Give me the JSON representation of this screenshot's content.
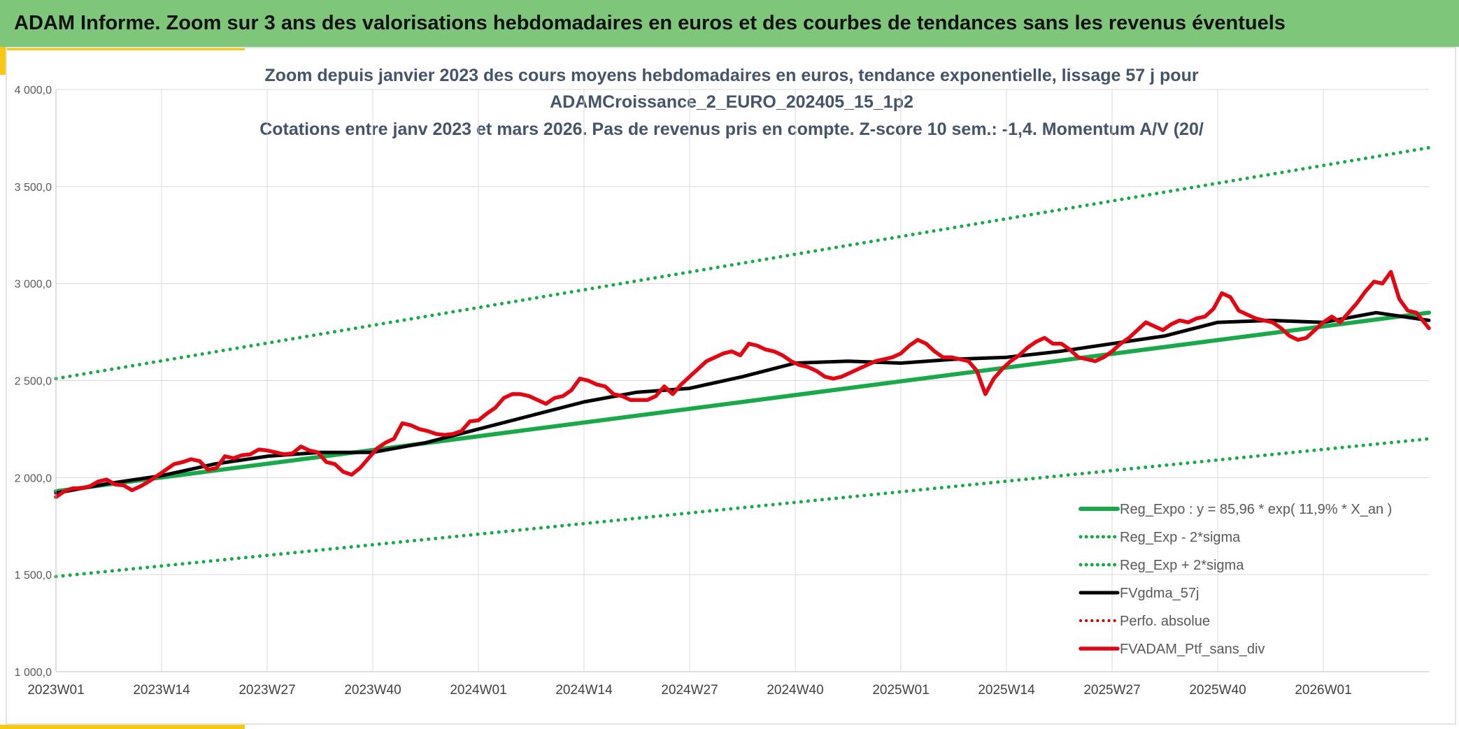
{
  "header": {
    "title": "ADAM Informe. Zoom sur 3 ans des valorisations hebdomadaires en euros et des courbes de tendances sans les revenus éventuels"
  },
  "colors": {
    "banner": "#7ec77a",
    "accent": "#f6c80f",
    "reg_expo": "#1aa94a",
    "sigma_bands": "#1aa94a",
    "fvgdma": "#000000",
    "ptf": "#e30613",
    "perfo": "#c00000"
  },
  "chart_data": {
    "type": "line",
    "title_lines": [
      "Zoom depuis janvier 2023 des cours moyens hebdomadaires en euros, tendance exponentielle, lissage 57 j pour",
      "ADAMCroissance_2_EURO_202405_15_1p2",
      "Cotations entre janv 2023 et mars 2026. Pas de revenus pris en compte. Z-score 10 sem.: -1,4. Momentum A/V (20/"
    ],
    "ylim": [
      1000,
      4000
    ],
    "yticks": [
      1000,
      1500,
      2000,
      2500,
      3000,
      3500,
      4000
    ],
    "ytick_labels": [
      "1 000,0",
      "1 500,0",
      "2 000,0",
      "2 500,0",
      "3 000,0",
      "3 500,0",
      "4 000,0"
    ],
    "xrange": [
      2023.0,
      2026.25
    ],
    "xticks": [
      2023.0,
      2023.25,
      2023.5,
      2023.75,
      2024.0,
      2024.25,
      2024.5,
      2024.75,
      2025.0,
      2025.25,
      2025.5,
      2025.75,
      2026.0
    ],
    "xtick_labels": [
      "2023W01",
      "2023W14",
      "2023W27",
      "2023W40",
      "2024W01",
      "2024W14",
      "2024W27",
      "2024W40",
      "2025W01",
      "2025W14",
      "2025W27",
      "2025W40",
      "2026W01"
    ],
    "grid": true,
    "legend_position": "bottom-right",
    "series": [
      {
        "name": "Reg_Expo : y = 85,96 * exp( 11,9% *  X_an )",
        "style": "solid-thick",
        "x": [
          2023.0,
          2026.25
        ],
        "y": [
          1930,
          2850
        ]
      },
      {
        "name": "Reg_Exp - 2*sigma",
        "style": "dotted",
        "x": [
          2023.0,
          2026.25
        ],
        "y": [
          1490,
          2200
        ]
      },
      {
        "name": "Reg_Exp + 2*sigma",
        "style": "dotted",
        "x": [
          2023.0,
          2026.25
        ],
        "y": [
          2510,
          3700
        ]
      },
      {
        "name": "FVgdma_57j",
        "style": "solid",
        "x": [
          2023.0,
          2023.125,
          2023.25,
          2023.375,
          2023.5,
          2023.625,
          2023.75,
          2023.875,
          2024.0,
          2024.125,
          2024.25,
          2024.375,
          2024.5,
          2024.625,
          2024.75,
          2024.875,
          2025.0,
          2025.125,
          2025.25,
          2025.375,
          2025.5,
          2025.625,
          2025.75,
          2025.875,
          2026.0,
          2026.125,
          2026.25
        ],
        "y": [
          1920,
          1970,
          2010,
          2070,
          2110,
          2130,
          2130,
          2180,
          2250,
          2320,
          2390,
          2440,
          2460,
          2520,
          2590,
          2600,
          2590,
          2610,
          2620,
          2650,
          2690,
          2730,
          2800,
          2810,
          2800,
          2850,
          2810
        ]
      },
      {
        "name": "Perfo. absolue",
        "style": "dotted",
        "x": [],
        "y": []
      },
      {
        "name": "FVADAM_Ptf_sans_div",
        "style": "solid-thick",
        "x": [
          2023.0,
          2023.02,
          2023.04,
          2023.06,
          2023.08,
          2023.1,
          2023.12,
          2023.14,
          2023.16,
          2023.18,
          2023.2,
          2023.22,
          2023.24,
          2023.26,
          2023.28,
          2023.3,
          2023.32,
          2023.34,
          2023.36,
          2023.38,
          2023.4,
          2023.42,
          2023.44,
          2023.46,
          2023.48,
          2023.5,
          2023.52,
          2023.54,
          2023.56,
          2023.58,
          2023.6,
          2023.62,
          2023.64,
          2023.66,
          2023.68,
          2023.7,
          2023.72,
          2023.74,
          2023.76,
          2023.78,
          2023.8,
          2023.82,
          2023.84,
          2023.86,
          2023.88,
          2023.9,
          2023.92,
          2023.94,
          2023.96,
          2023.98,
          2024.0,
          2024.02,
          2024.04,
          2024.06,
          2024.08,
          2024.1,
          2024.12,
          2024.14,
          2024.16,
          2024.18,
          2024.2,
          2024.22,
          2024.24,
          2024.26,
          2024.28,
          2024.3,
          2024.32,
          2024.34,
          2024.36,
          2024.38,
          2024.4,
          2024.42,
          2024.44,
          2024.46,
          2024.48,
          2024.5,
          2024.52,
          2024.54,
          2024.56,
          2024.58,
          2024.6,
          2024.62,
          2024.64,
          2024.66,
          2024.68,
          2024.7,
          2024.72,
          2024.74,
          2024.76,
          2024.78,
          2024.8,
          2024.82,
          2024.84,
          2024.86,
          2024.88,
          2024.9,
          2024.92,
          2024.94,
          2024.96,
          2024.98,
          2025.0,
          2025.02,
          2025.04,
          2025.06,
          2025.08,
          2025.1,
          2025.12,
          2025.14,
          2025.16,
          2025.18,
          2025.2,
          2025.22,
          2025.24,
          2025.26,
          2025.28,
          2025.3,
          2025.32,
          2025.34,
          2025.36,
          2025.38,
          2025.4,
          2025.42,
          2025.44,
          2025.46,
          2025.48,
          2025.5,
          2025.52,
          2025.54,
          2025.56,
          2025.58,
          2025.6,
          2025.62,
          2025.64,
          2025.66,
          2025.68,
          2025.7,
          2025.72,
          2025.74,
          2025.76,
          2025.78,
          2025.8,
          2025.82,
          2025.84,
          2025.86,
          2025.88,
          2025.9,
          2025.92,
          2025.94,
          2025.96,
          2025.98,
          2026.0,
          2026.02,
          2026.04,
          2026.06,
          2026.08,
          2026.1,
          2026.12,
          2026.14,
          2026.16,
          2026.18,
          2026.2,
          2026.22,
          2026.25
        ],
        "y": [
          1900,
          1930,
          1945,
          1945,
          1955,
          1980,
          1990,
          1965,
          1960,
          1935,
          1955,
          1980,
          2010,
          2040,
          2070,
          2080,
          2095,
          2085,
          2040,
          2050,
          2110,
          2100,
          2115,
          2120,
          2145,
          2140,
          2130,
          2120,
          2125,
          2160,
          2140,
          2130,
          2080,
          2070,
          2030,
          2015,
          2050,
          2100,
          2150,
          2180,
          2200,
          2280,
          2270,
          2250,
          2240,
          2225,
          2220,
          2225,
          2240,
          2290,
          2295,
          2330,
          2360,
          2410,
          2430,
          2430,
          2420,
          2400,
          2380,
          2410,
          2420,
          2450,
          2510,
          2500,
          2480,
          2470,
          2430,
          2420,
          2400,
          2400,
          2400,
          2420,
          2470,
          2430,
          2480,
          2520,
          2560,
          2600,
          2620,
          2640,
          2650,
          2630,
          2690,
          2680,
          2660,
          2650,
          2630,
          2600,
          2580,
          2570,
          2550,
          2520,
          2510,
          2520,
          2540,
          2560,
          2580,
          2600,
          2610,
          2620,
          2640,
          2680,
          2710,
          2690,
          2650,
          2620,
          2620,
          2610,
          2600,
          2550,
          2430,
          2510,
          2560,
          2600,
          2630,
          2670,
          2700,
          2720,
          2690,
          2690,
          2660,
          2620,
          2610,
          2600,
          2620,
          2650,
          2690,
          2720,
          2760,
          2800,
          2780,
          2760,
          2790,
          2810,
          2800,
          2820,
          2830,
          2870,
          2950,
          2930,
          2860,
          2840,
          2820,
          2810,
          2800,
          2770,
          2730,
          2710,
          2720,
          2760,
          2800,
          2830,
          2800,
          2850,
          2900,
          2960,
          3010,
          3000,
          3060,
          2920,
          2860,
          2850,
          2770
        ]
      }
    ]
  }
}
